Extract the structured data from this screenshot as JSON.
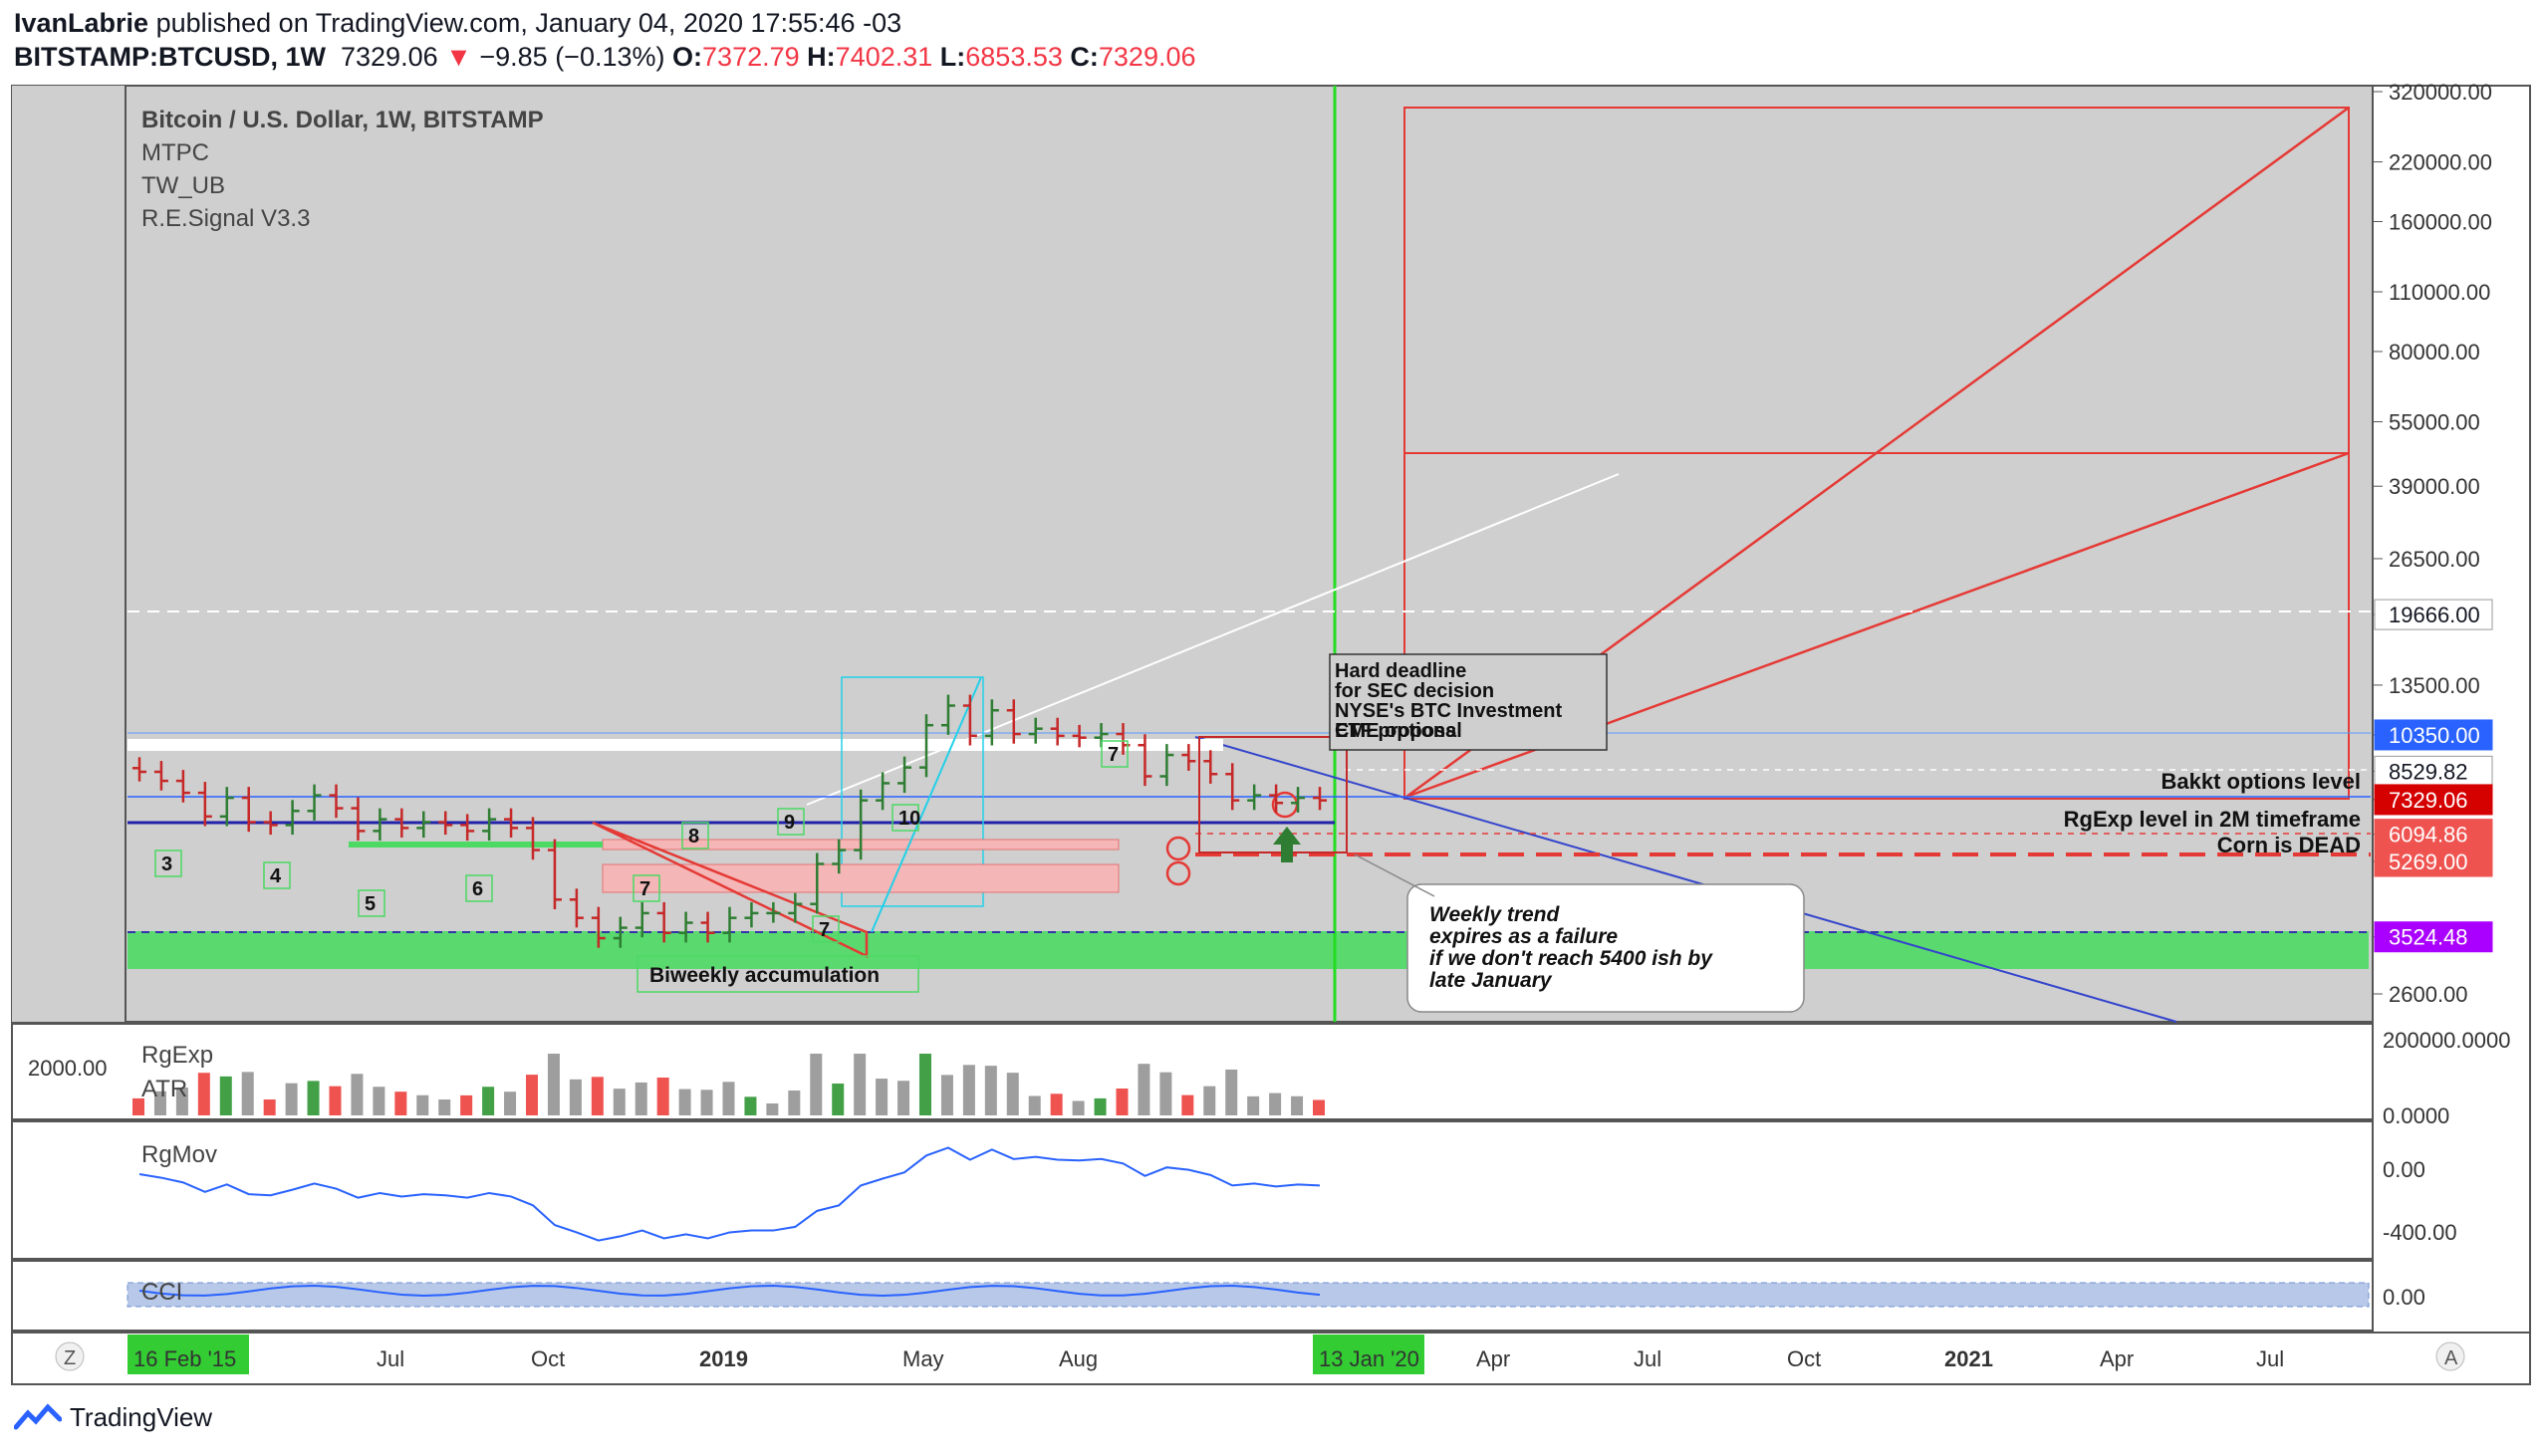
{
  "header": {
    "publisher": "IvanLabrie",
    "published_text": "published on TradingView.com, January 04, 2020 17:55:46 -03",
    "symbol": "BITSTAMP:BTCUSD, 1W",
    "last": "7329.06",
    "change": "−9.85 (−0.13%)",
    "o_label": "O:",
    "o": "7372.79",
    "h_label": "H:",
    "h": "7402.31",
    "l_label": "L:",
    "l": "6853.53",
    "c_label": "C:",
    "c": "7329.06"
  },
  "legend": [
    "Bitcoin / U.S. Dollar, 1W, BITSTAMP",
    "MTPC",
    "TW_UB",
    "R.E.Signal V3.3"
  ],
  "colors": {
    "up": "#2e7d32",
    "down": "#c62828",
    "bg": "#cfcfcf",
    "accent": "#2962ff"
  },
  "chart_data": {
    "type": "candlestick",
    "scale": "log",
    "price_axis": [
      "320000.00",
      "220000.00",
      "160000.00",
      "110000.00",
      "80000.00",
      "55000.00",
      "39000.00",
      "26500.00",
      "19666.00",
      "13500.00",
      "10350.00",
      "8529.82",
      "7329.06",
      "6094.86",
      "5269.00",
      "3524.48",
      "2600.00"
    ],
    "price_axis_values": [
      320000,
      220000,
      160000,
      110000,
      80000,
      55000,
      39000,
      26500,
      19666,
      13500,
      10350,
      8529.82,
      7329.06,
      6094.86,
      5269,
      3524.48,
      2600
    ],
    "price_labels_boxed": [
      {
        "text": "19666.00",
        "bg": "#ffffff",
        "fg": "#131722",
        "value": 19666
      },
      {
        "text": "10350.00",
        "bg": "#2962ff",
        "fg": "#ffffff",
        "value": 10350
      },
      {
        "text": "8529.82",
        "bg": "#ffffff",
        "fg": "#131722",
        "value": 8529.82
      },
      {
        "text": "7329.06",
        "bg": "#d50000",
        "fg": "#ffffff",
        "value": 7329.06
      },
      {
        "text": "6094.86",
        "bg": "#ef5350",
        "fg": "#ffffff",
        "value": 6094.86
      },
      {
        "text": "5269.00",
        "bg": "#ef5350",
        "fg": "#ffffff",
        "value": 5269
      },
      {
        "text": "3524.48",
        "bg": "#aa00ff",
        "fg": "#ffffff",
        "value": 3524.48
      }
    ],
    "time_axis": [
      "16 Feb '15",
      "Jul",
      "Oct",
      "2019",
      "May",
      "Aug",
      "13 Jan '20",
      "Apr",
      "Jul",
      "Oct",
      "2021",
      "Apr",
      "Jul"
    ],
    "time_axis_bold": [
      "2019",
      "2021"
    ],
    "time_axis_highlight": [
      "16 Feb '15",
      "13 Jan '20"
    ],
    "weekly_close": [
      8500,
      8100,
      7600,
      6700,
      7400,
      6500,
      6400,
      6900,
      7500,
      7000,
      6200,
      6600,
      6300,
      6500,
      6400,
      6200,
      6600,
      6300,
      5600,
      4300,
      3900,
      3500,
      3700,
      4000,
      3600,
      3800,
      3600,
      3900,
      4000,
      4000,
      4200,
      5200,
      5600,
      7300,
      8000,
      8700,
      10900,
      12100,
      10300,
      11800,
      10400,
      10700,
      10300,
      10200,
      10400,
      9800,
      8300,
      9300,
      9000,
      8400,
      7300,
      7500,
      7200,
      7400,
      7300
    ],
    "annotations": [
      "Hard deadline",
      "for SEC decision",
      "NYSE's BTC Investment",
      "ETF proposal",
      "CME options",
      "Bakkt options level",
      "RgExp level in 2M timeframe",
      "Corn is DEAD",
      "Biweekly accumulation",
      "Weekly trend",
      "expires as a failure",
      "if we don't reach 5400 ish by",
      "late January"
    ],
    "wave_labels": [
      "3",
      "4",
      "5",
      "6",
      "7",
      "8",
      "9",
      "10",
      "7",
      "7"
    ],
    "sub_panes": [
      {
        "name": "RgExp",
        "axis": [
          "200000.0000",
          "0.0000"
        ]
      },
      {
        "name": "ATR",
        "axis": [
          "2000.00"
        ]
      },
      {
        "name": "RgMov",
        "axis": [
          "0.00",
          "-400.00"
        ]
      },
      {
        "name": "CCI",
        "axis": [
          "0.00"
        ]
      }
    ],
    "corner_buttons": [
      "Z",
      "A"
    ]
  },
  "footer": {
    "brand": "TradingView"
  }
}
